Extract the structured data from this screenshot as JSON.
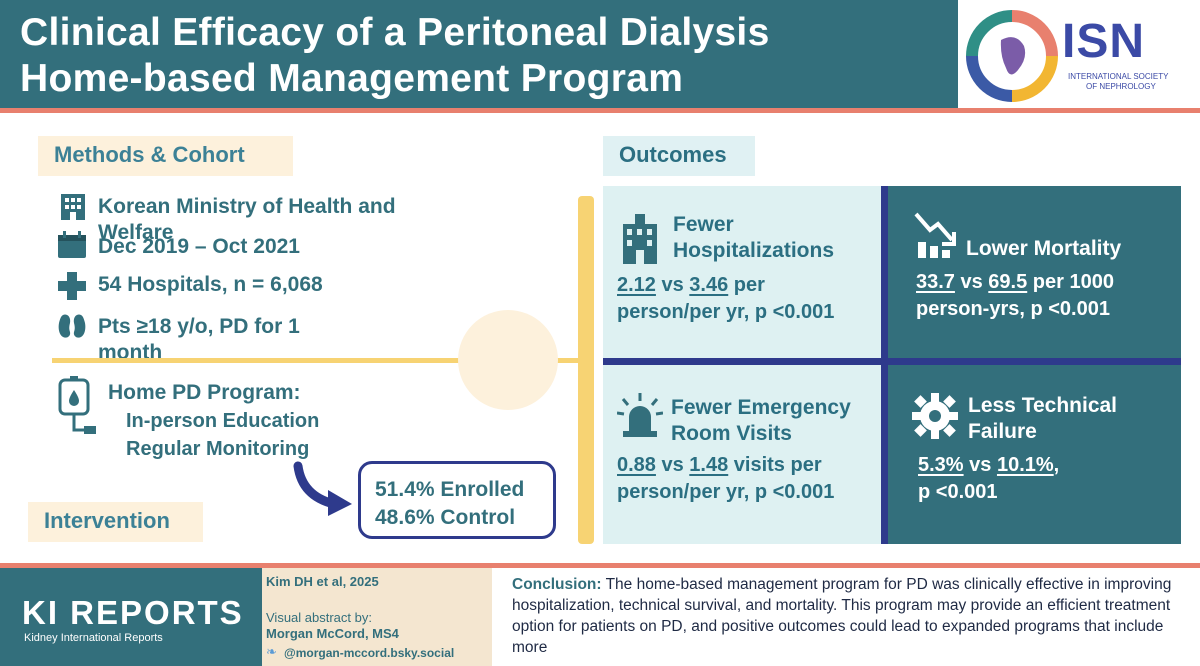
{
  "header": {
    "title_line1": "Clinical Efficacy of a Peritoneal Dialysis",
    "title_line2": "Home-based Management Program",
    "logo_text": "ISN",
    "logo_sub1": "INTERNATIONAL SOCIETY",
    "logo_sub2": "OF NEPHROLOGY"
  },
  "methods": {
    "label": "Methods & Cohort",
    "rows": [
      {
        "icon": "building-icon",
        "text": "Korean Ministry of Health and Welfare"
      },
      {
        "icon": "calendar-icon",
        "text": "Dec 2019 – Oct 2021"
      },
      {
        "icon": "plus-icon",
        "text": "54 Hospitals, n = 6,068"
      },
      {
        "icon": "kidney-icon",
        "text": "Pts ≥18 y/o, PD for 1 month"
      }
    ]
  },
  "intervention": {
    "label": "Intervention",
    "program_title": "Home PD Program:",
    "item1": "In-person Education",
    "item2": "Regular Monitoring",
    "enrolled": "51.4% Enrolled",
    "control": "48.6% Control"
  },
  "outcomes": {
    "label": "Outcomes",
    "hosp": {
      "title": "Fewer Hospitalizations",
      "v1": "2.12",
      "vs": " vs ",
      "v2": "3.46",
      "rest1": " per",
      "rest2": "person/per yr, p <0.001"
    },
    "mort": {
      "title": "Lower Mortality",
      "v1": "33.7",
      "vs": " vs ",
      "v2": "69.5",
      "rest1": " per 1000",
      "rest2": "person-yrs, p <0.001"
    },
    "er": {
      "title": "Fewer Emergency Room Visits",
      "v1": "0.88",
      "vs": " vs ",
      "v2": "1.48",
      "rest1": " visits per",
      "rest2": "person/per yr, p <0.001"
    },
    "tech": {
      "title": "Less Technical Failure",
      "v1": "5.3%",
      "vs": " vs ",
      "v2": "10.1%",
      "rest1": ",",
      "rest2": "p <0.001"
    }
  },
  "footer": {
    "brand": "KI REPORTS",
    "brand_sub": "Kidney International Reports",
    "citation": "Kim DH et al, 2025",
    "va_by": "Visual abstract by:",
    "author": "Morgan McCord, MS4",
    "handle": "@morgan-mccord.bsky.social",
    "conclusion_label": "Conclusion:",
    "conclusion_text": " The home-based management program for PD was clinically effective in improving hospitalization, technical survival, and mortality. This program may provide an efficient treatment option for patients on PD, and positive outcomes could lead to expanded programs that include more"
  },
  "colors": {
    "teal": "#336f7c",
    "coral": "#e8806e",
    "yellow": "#f7d373",
    "navy": "#2e3a8c",
    "light": "#def1f2"
  }
}
